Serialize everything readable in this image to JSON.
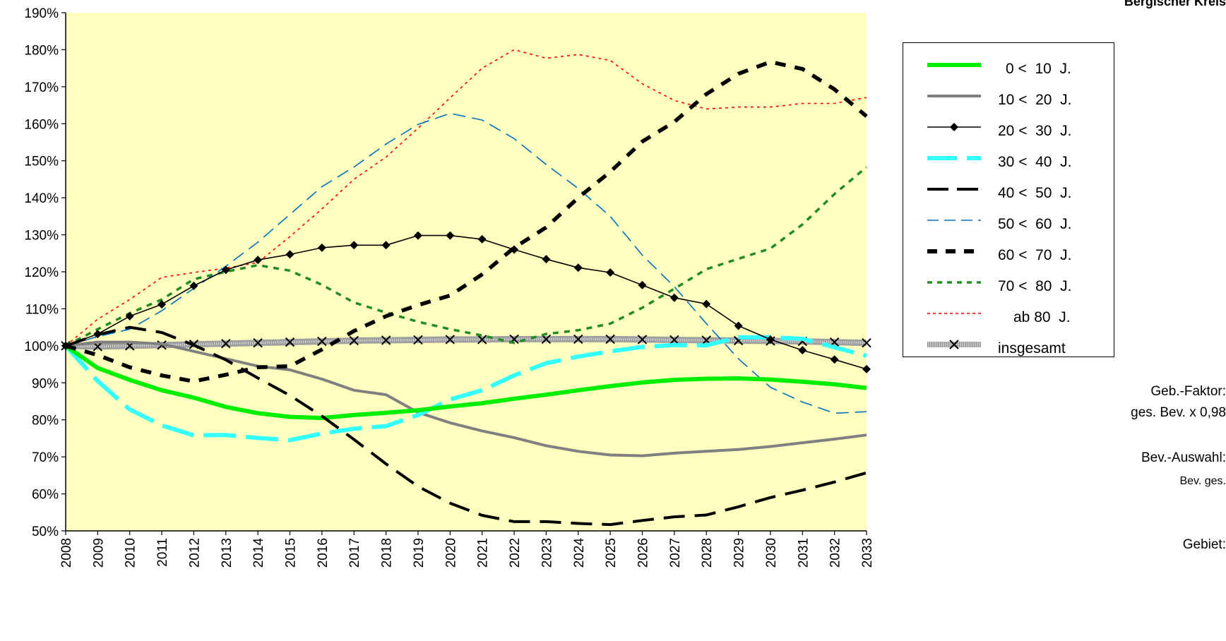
{
  "corner_title": "Bergischer Kreis",
  "side_notes": {
    "factor_label": "Geb.-Faktor:",
    "factor_value": "ges. Bev. x 0,98",
    "selection_label": "Bev.-Auswahl:",
    "selection_value": "Bev. ges.",
    "area_label": "Gebiet:"
  },
  "colors": {
    "plot_background": "#FFFFC0",
    "s0": "#00EE00",
    "s1": "#808080",
    "s2": "#000000",
    "s3": "#33FFFF",
    "s4": "#000000",
    "s5": "#0070C0",
    "s6": "#000000",
    "s7": "#228B22",
    "s8": "#FF0000",
    "s9": "#A0A0A0"
  },
  "chart_data": {
    "type": "line",
    "x": [
      2008,
      2009,
      2010,
      2011,
      2012,
      2013,
      2014,
      2015,
      2016,
      2017,
      2018,
      2019,
      2020,
      2021,
      2022,
      2023,
      2024,
      2025,
      2026,
      2027,
      2028,
      2029,
      2030,
      2031,
      2032,
      2033
    ],
    "ylim": [
      50,
      190
    ],
    "y_ticks": [
      "50%",
      "60%",
      "70%",
      "80%",
      "90%",
      "100%",
      "110%",
      "120%",
      "130%",
      "140%",
      "150%",
      "160%",
      "170%",
      "180%",
      "190%"
    ],
    "x_ticks": [
      "2008",
      "2009",
      "2010",
      "2011",
      "2012",
      "2013",
      "2014",
      "2015",
      "2016",
      "2017",
      "2018",
      "2019",
      "2020",
      "2021",
      "2022",
      "2023",
      "2024",
      "2025",
      "2026",
      "2027",
      "2028",
      "2029",
      "2030",
      "2031",
      "2032",
      "2033"
    ],
    "grid": false,
    "legend_position": "right",
    "series": [
      {
        "name": "0 <  10  J.",
        "values": [
          100,
          94,
          90.8,
          88,
          86,
          83.5,
          81.8,
          80.8,
          80.5,
          81.3,
          81.9,
          82.6,
          83.6,
          84.5,
          85.7,
          86.8,
          88,
          89.1,
          90.1,
          90.8,
          91.1,
          91.2,
          90.9,
          90.3,
          89.6,
          88.6
        ]
      },
      {
        "name": "10 <  20  J.",
        "values": [
          100,
          101,
          101,
          100.5,
          98.5,
          96.5,
          94.5,
          93.5,
          91,
          88,
          86.8,
          82,
          79.2,
          77,
          75.2,
          73,
          71.5,
          70.5,
          70.3,
          71,
          71.5,
          72,
          72.8,
          73.8,
          74.8,
          75.9
        ]
      },
      {
        "name": "20 <  30  J.",
        "values": [
          100,
          103.2,
          108,
          111.2,
          116.2,
          120.5,
          123.2,
          124.7,
          126.5,
          127.2,
          127.2,
          129.8,
          129.8,
          128.8,
          126,
          123.4,
          121.1,
          119.8,
          116.4,
          113,
          111.3,
          105.4,
          101.7,
          98.8,
          96.3,
          93.7
        ]
      },
      {
        "name": "30 <  40  J.",
        "values": [
          100,
          90.5,
          82.8,
          78.5,
          75.8,
          75.9,
          75.1,
          74.5,
          76.3,
          77.6,
          78.3,
          81.3,
          85.5,
          88,
          92,
          95.3,
          97.1,
          98.5,
          99.7,
          100.2,
          100.1,
          102.3,
          102.3,
          101.9,
          99.6,
          97.3
        ]
      },
      {
        "name": "40 <  50  J.",
        "values": [
          100,
          103,
          105,
          103.6,
          100.2,
          96.2,
          91.3,
          86.6,
          81,
          74.7,
          68.1,
          62,
          57.5,
          54.2,
          52.5,
          52.5,
          52,
          51.7,
          52.8,
          53.8,
          54.3,
          56.5,
          59,
          61,
          63.2,
          65.7
        ]
      },
      {
        "name": "50 <  60  J.",
        "values": [
          100,
          102.5,
          104.5,
          109.5,
          115.5,
          121.5,
          128,
          135.5,
          143,
          148.3,
          154.5,
          159.8,
          162.8,
          161,
          156,
          149,
          142.5,
          135,
          124.5,
          116,
          106,
          96.5,
          88.8,
          84.8,
          81.8,
          82.2
        ]
      },
      {
        "name": "60 <  70  J.",
        "values": [
          100,
          97.5,
          94.2,
          92,
          90.4,
          92.2,
          94.2,
          94.5,
          99,
          104,
          108,
          111,
          113.6,
          119.3,
          126.5,
          132,
          140,
          147,
          155.2,
          160.5,
          168,
          173.5,
          176.7,
          174.8,
          169.3,
          162
        ]
      },
      {
        "name": "70 <  80  J.",
        "values": [
          100,
          104.5,
          108.8,
          112.5,
          118,
          120,
          121.8,
          120.3,
          116.5,
          111.7,
          109,
          106.5,
          104.5,
          102.8,
          100.8,
          103.2,
          104.2,
          106,
          110.3,
          115.4,
          120.7,
          123.5,
          126.3,
          132.8,
          141,
          148.3
        ]
      },
      {
        "name": "ab 80  J.",
        "values": [
          100,
          107.2,
          112.5,
          118.5,
          119.8,
          121,
          122.5,
          129.5,
          137,
          145,
          151,
          158.8,
          167,
          175,
          180,
          177.7,
          178.7,
          177.1,
          170.8,
          166.3,
          164,
          164.5,
          164.5,
          165.5,
          165.5,
          167.1
        ]
      },
      {
        "name": "insgesamt",
        "values": [
          100,
          99.8,
          100,
          100.2,
          100.4,
          100.6,
          100.8,
          101,
          101.2,
          101.4,
          101.5,
          101.6,
          101.7,
          101.7,
          101.8,
          101.8,
          101.8,
          101.8,
          101.7,
          101.6,
          101.5,
          101.4,
          101.3,
          101.2,
          101,
          100.8
        ]
      }
    ]
  }
}
